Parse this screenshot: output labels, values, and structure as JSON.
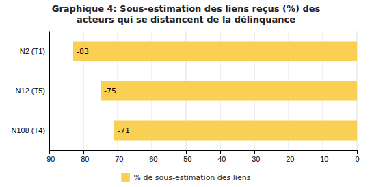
{
  "chart_data": {
    "type": "bar",
    "orientation": "horizontal",
    "title": "Graphique 4: Sous-estimation des liens reçus (%) des\nacteurs qui se distancent de la délinquance",
    "categories": [
      "N108 (T4)",
      "N12 (T5)",
      "N2 (T1)"
    ],
    "series": [
      {
        "name": "% de sous-estimation des liens",
        "color": "#F9D054",
        "values": [
          -71,
          -75,
          -83
        ]
      }
    ],
    "xlim": [
      -90,
      0
    ],
    "xticks": [
      -90,
      -80,
      -70,
      -60,
      -50,
      -40,
      -30,
      -20,
      -10,
      0
    ],
    "grid": true,
    "data_labels": true,
    "legend": "bottom"
  }
}
